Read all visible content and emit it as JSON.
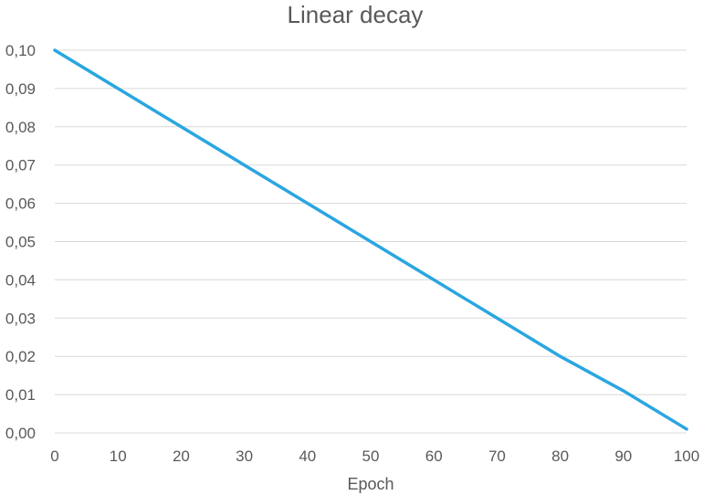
{
  "chart_data": {
    "type": "line",
    "title": "Linear decay",
    "xlabel": "Epoch",
    "ylabel": "",
    "x": [
      0,
      10,
      20,
      30,
      40,
      50,
      60,
      70,
      80,
      90,
      100
    ],
    "series": [
      {
        "values": [
          0.1,
          0.09,
          0.08,
          0.07,
          0.06,
          0.05,
          0.04,
          0.03,
          0.02,
          0.011,
          0.001
        ]
      }
    ],
    "xlim": [
      0,
      100
    ],
    "ylim": [
      0,
      0.1
    ],
    "xticks": [
      "0",
      "10",
      "20",
      "30",
      "40",
      "50",
      "60",
      "70",
      "80",
      "90",
      "100"
    ],
    "yticks": [
      "0,00",
      "0,01",
      "0,02",
      "0,03",
      "0,04",
      "0,05",
      "0,06",
      "0,07",
      "0,08",
      "0,09",
      "0,10"
    ],
    "grid": "horizontal",
    "legend": "none",
    "colors": {
      "line": "#2aa6e0",
      "grid": "#d9d9d9",
      "text": "#595959"
    }
  }
}
